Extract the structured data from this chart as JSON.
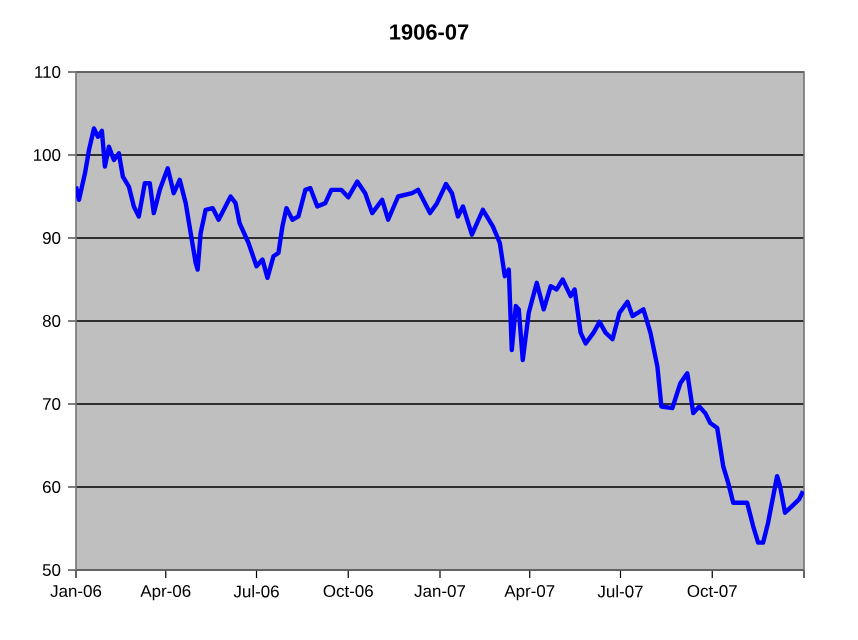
{
  "chart_data": {
    "type": "line",
    "title": "1906-07",
    "x": [
      "1906-01-01",
      "1906-01-04",
      "1906-01-10",
      "1906-01-14",
      "1906-01-19",
      "1906-01-23",
      "1906-01-27",
      "1906-01-30",
      "1906-02-03",
      "1906-02-08",
      "1906-02-13",
      "1906-02-17",
      "1906-02-23",
      "1906-02-28",
      "1906-03-05",
      "1906-03-11",
      "1906-03-16",
      "1906-03-20",
      "1906-03-26",
      "1906-04-03",
      "1906-04-09",
      "1906-04-15",
      "1906-04-21",
      "1906-04-26",
      "1906-05-01",
      "1906-05-03",
      "1906-05-06",
      "1906-05-11",
      "1906-05-18",
      "1906-05-24",
      "1906-06-05",
      "1906-06-10",
      "1906-06-14",
      "1906-06-23",
      "1906-07-01",
      "1906-07-07",
      "1906-07-12",
      "1906-07-18",
      "1906-07-23",
      "1906-07-27",
      "1906-07-31",
      "1906-08-06",
      "1906-08-12",
      "1906-08-19",
      "1906-08-24",
      "1906-08-31",
      "1906-09-08",
      "1906-09-14",
      "1906-09-24",
      "1906-10-01",
      "1906-10-10",
      "1906-10-18",
      "1906-10-25",
      "1906-11-04",
      "1906-11-10",
      "1906-11-20",
      "1906-12-04",
      "1906-12-10",
      "1906-12-22",
      "1906-12-29",
      "1907-01-07",
      "1907-01-13",
      "1907-01-19",
      "1907-01-24",
      "1907-02-02",
      "1907-02-13",
      "1907-02-23",
      "1907-03-02",
      "1907-03-07",
      "1907-03-11",
      "1907-03-14",
      "1907-03-18",
      "1907-03-21",
      "1907-03-25",
      "1907-03-31",
      "1907-04-08",
      "1907-04-15",
      "1907-04-22",
      "1907-04-28",
      "1907-05-04",
      "1907-05-12",
      "1907-05-16",
      "1907-05-22",
      "1907-05-27",
      "1907-06-04",
      "1907-06-10",
      "1907-06-16",
      "1907-06-23",
      "1907-06-30",
      "1907-07-08",
      "1907-07-13",
      "1907-07-24",
      "1907-07-31",
      "1907-08-07",
      "1907-08-11",
      "1907-08-22",
      "1907-08-30",
      "1907-09-06",
      "1907-09-12",
      "1907-09-18",
      "1907-09-24",
      "1907-09-29",
      "1907-10-06",
      "1907-10-12",
      "1907-10-17",
      "1907-10-22",
      "1907-10-29",
      "1907-11-05",
      "1907-11-11",
      "1907-11-16",
      "1907-11-21",
      "1907-11-26",
      "1907-12-05",
      "1907-12-08",
      "1907-12-13",
      "1907-12-20",
      "1907-12-27",
      "1907-12-31"
    ],
    "series": [
      {
        "color": "#0000ff",
        "values": [
          96.2,
          94.6,
          97.8,
          100.6,
          103.2,
          102.2,
          102.9,
          98.6,
          101.0,
          99.4,
          100.2,
          97.4,
          96.2,
          93.8,
          92.6,
          96.6,
          96.6,
          93.0,
          95.8,
          98.4,
          95.4,
          97.0,
          94.2,
          90.6,
          87.0,
          86.2,
          90.6,
          93.4,
          93.6,
          92.2,
          95.0,
          94.2,
          91.8,
          89.4,
          86.6,
          87.4,
          85.2,
          87.8,
          88.2,
          91.4,
          93.6,
          92.2,
          92.6,
          95.8,
          96.0,
          93.8,
          94.2,
          95.8,
          95.8,
          94.9,
          96.8,
          95.4,
          93.0,
          94.6,
          92.2,
          95.0,
          95.4,
          95.8,
          93.0,
          94.2,
          96.5,
          95.4,
          92.6,
          93.8,
          90.4,
          93.4,
          91.4,
          89.4,
          85.4,
          86.2,
          76.5,
          81.8,
          81.4,
          75.3,
          81.0,
          84.6,
          81.4,
          84.2,
          83.8,
          85.0,
          83.0,
          83.8,
          78.6,
          77.3,
          78.6,
          79.9,
          78.6,
          77.8,
          81.0,
          82.3,
          80.6,
          81.4,
          78.6,
          74.5,
          69.7,
          69.5,
          72.5,
          73.7,
          68.9,
          69.7,
          68.9,
          67.7,
          67.1,
          62.5,
          60.5,
          58.1,
          58.1,
          58.1,
          55.3,
          53.3,
          53.3,
          55.7,
          61.3,
          60.1,
          56.9,
          57.7,
          58.5,
          59.5
        ]
      }
    ],
    "xlim": [
      "1906-01-01",
      "1908-01-01"
    ],
    "xticks": [
      {
        "value": "1906-01-01",
        "label": "Jan-06"
      },
      {
        "value": "1906-04-01",
        "label": "Apr-06"
      },
      {
        "value": "1906-07-01",
        "label": "Jul-06"
      },
      {
        "value": "1906-10-01",
        "label": "Oct-06"
      },
      {
        "value": "1907-01-01",
        "label": "Jan-07"
      },
      {
        "value": "1907-04-01",
        "label": "Apr-07"
      },
      {
        "value": "1907-07-01",
        "label": "Jul-07"
      },
      {
        "value": "1907-10-01",
        "label": "Oct-07"
      },
      {
        "value": "1908-01-01",
        "label": null
      }
    ],
    "ylim": [
      50,
      110
    ],
    "yticks": [
      50,
      60,
      70,
      80,
      90,
      100,
      110
    ],
    "grid": "y",
    "legend": false,
    "marker": "none",
    "line_style": "solid"
  }
}
